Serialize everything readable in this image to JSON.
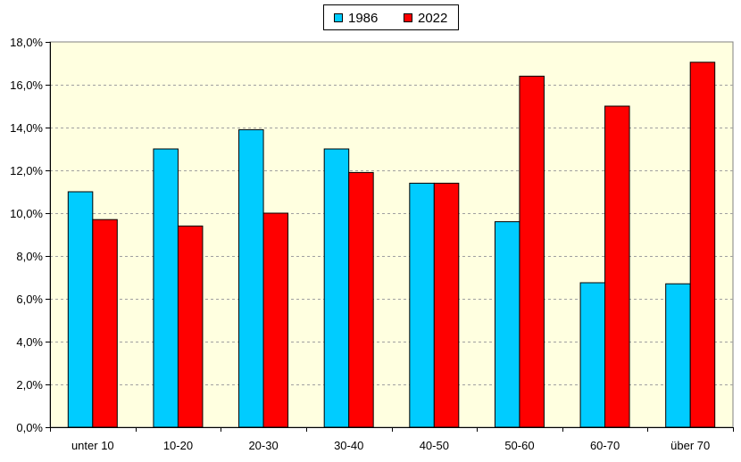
{
  "chart_data": {
    "type": "bar",
    "title": "",
    "xlabel": "",
    "ylabel": "",
    "categories": [
      "unter 10",
      "10-20",
      "20-30",
      "30-40",
      "40-50",
      "50-60",
      "60-70",
      "über 70"
    ],
    "series": [
      {
        "name": "1986",
        "color": "#00ccff",
        "values": [
          11.0,
          13.0,
          13.9,
          13.0,
          11.4,
          9.6,
          6.75,
          6.7
        ]
      },
      {
        "name": "2022",
        "color": "#ff0000",
        "values": [
          9.7,
          9.4,
          10.0,
          11.9,
          11.4,
          16.4,
          15.0,
          17.05
        ]
      }
    ],
    "ylim": [
      0,
      18
    ],
    "yticks": [
      0,
      2,
      4,
      6,
      8,
      10,
      12,
      14,
      16,
      18
    ],
    "ytick_labels": [
      "0,0%",
      "2,0%",
      "4,0%",
      "6,0%",
      "8,0%",
      "10,0%",
      "12,0%",
      "14,0%",
      "16,0%",
      "18,0%"
    ],
    "grid": true,
    "legend_position": "top-center",
    "plot_background": "#ffffe0"
  }
}
